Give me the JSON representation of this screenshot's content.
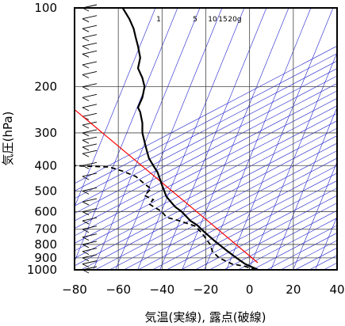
{
  "chart_data": {
    "type": "line",
    "title": "",
    "xlabel": "気温(実線), 露点(破線)",
    "ylabel": "気圧(hPa)",
    "y_scale": "log",
    "y_inverted": true,
    "xlim": [
      -80,
      40
    ],
    "ylim": [
      1000,
      100
    ],
    "xticks": [
      -80,
      -60,
      -40,
      -20,
      0,
      20,
      40
    ],
    "yticks": [
      100,
      200,
      300,
      400,
      500,
      600,
      700,
      800,
      900,
      1000
    ],
    "grid": true,
    "mixing_ratio_labels": [
      "1",
      "5",
      "10",
      "15",
      "20g"
    ],
    "colors": {
      "temperature": "#000000",
      "dewpoint": "#000000",
      "parcel": "#ff0000",
      "dry_adiabat": "#2222cc",
      "isotherm": "#2222cc"
    },
    "series": [
      {
        "style": "solid",
        "points": [
          [
            4,
            1000
          ],
          [
            1,
            975
          ],
          [
            -2,
            950
          ],
          [
            -4,
            925
          ],
          [
            -6,
            900
          ],
          [
            -8,
            875
          ],
          [
            -10,
            850
          ],
          [
            -12,
            825
          ],
          [
            -14,
            800
          ],
          [
            -16,
            775
          ],
          [
            -18,
            750
          ],
          [
            -20,
            725
          ],
          [
            -22,
            700
          ],
          [
            -24,
            675
          ],
          [
            -27,
            650
          ],
          [
            -29,
            625
          ],
          [
            -31,
            600
          ],
          [
            -34,
            575
          ],
          [
            -36,
            550
          ],
          [
            -38,
            525
          ],
          [
            -39,
            500
          ],
          [
            -40,
            475
          ],
          [
            -41,
            450
          ],
          [
            -42,
            425
          ],
          [
            -44,
            400
          ],
          [
            -46,
            375
          ],
          [
            -47,
            350
          ],
          [
            -48,
            325
          ],
          [
            -49,
            300
          ],
          [
            -49,
            275
          ],
          [
            -50,
            250
          ],
          [
            -51,
            240
          ],
          [
            -49,
            220
          ],
          [
            -48,
            200
          ],
          [
            -49,
            185
          ],
          [
            -51,
            170
          ],
          [
            -50,
            155
          ],
          [
            -51,
            140
          ],
          [
            -52,
            130
          ],
          [
            -53,
            120
          ],
          [
            -55,
            110
          ],
          [
            -58,
            100
          ]
        ]
      },
      {
        "style": "dashed",
        "points": [
          [
            3,
            1000
          ],
          [
            -2,
            970
          ],
          [
            -8,
            950
          ],
          [
            -14,
            900
          ],
          [
            -17,
            850
          ],
          [
            -18,
            800
          ],
          [
            -20,
            760
          ],
          [
            -22,
            720
          ],
          [
            -25,
            680
          ],
          [
            -32,
            650
          ],
          [
            -38,
            630
          ],
          [
            -40,
            600
          ],
          [
            -46,
            560
          ],
          [
            -44,
            540
          ],
          [
            -48,
            520
          ],
          [
            -45,
            490
          ],
          [
            -48,
            470
          ],
          [
            -52,
            440
          ],
          [
            -58,
            420
          ],
          [
            -64,
            405
          ],
          [
            -80,
            400
          ]
        ]
      }
    ]
  }
}
